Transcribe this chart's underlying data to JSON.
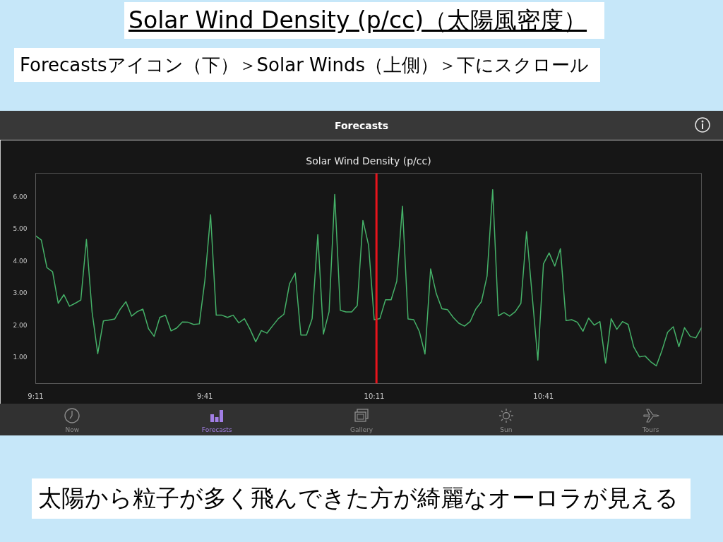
{
  "chart_data": {
    "type": "line",
    "title": "Solar Wind Density (p/cc)（太陽風密度）",
    "subtitle": "Forecastsアイコン（下）＞Solar Winds（上側）＞下にスクロール",
    "annotations": [
      "Forecasts",
      "Solar Wind Density (p/cc)",
      "Now",
      "Forecasts",
      "Gallery",
      "Sun",
      "Tours",
      "太陽から粒子が多く飛んできた方が綺麗なオーロラが見える"
    ],
    "x": [
      9.1833,
      9.2,
      9.2167,
      9.2333,
      9.25,
      9.2667,
      9.2833,
      9.3,
      9.3167,
      9.3333,
      9.35,
      9.3667,
      9.3833,
      9.4,
      9.4167,
      9.4333,
      9.45,
      9.4667,
      9.4833,
      9.5,
      9.5167,
      9.5333,
      9.55,
      9.5667,
      9.5833,
      9.6,
      9.6167,
      9.6333,
      9.65,
      9.6667,
      9.6833,
      9.7,
      9.7167,
      9.7333,
      9.75,
      9.7667,
      9.7833,
      9.8,
      9.8167,
      9.8333,
      9.85,
      9.8667,
      9.8833,
      9.9,
      9.9167,
      9.9333,
      9.95,
      9.9667,
      9.9833,
      10.0,
      10.0167,
      10.0333,
      10.05,
      10.0667,
      10.0833,
      10.1,
      10.1167,
      10.1333,
      10.15,
      10.1667,
      10.1833,
      10.2,
      10.2167,
      10.2333,
      10.25,
      10.2667,
      10.2833,
      10.3,
      10.3167,
      10.3333,
      10.35,
      10.3667,
      10.3833,
      10.4,
      10.4167,
      10.4333,
      10.45,
      10.4667,
      10.4833,
      10.5,
      10.5167,
      10.5333,
      10.55,
      10.5667,
      10.5833,
      10.6,
      10.6167,
      10.6333,
      10.65,
      10.6667,
      10.6833,
      10.7,
      10.7167,
      10.7333,
      10.75,
      10.7667,
      10.7833,
      10.8,
      10.8167,
      10.8333,
      10.85,
      10.8667,
      10.8833,
      10.9,
      10.9167,
      10.9333,
      10.95,
      10.9667,
      10.9833,
      11.0,
      11.0167,
      11.0333,
      11.05,
      11.0667,
      11.0833,
      11.1,
      11.1167,
      11.1333,
      11.15
    ],
    "series": [
      {
        "color": "#45b168",
        "values": [
          4.77,
          4.64,
          3.78,
          3.65,
          2.67,
          2.94,
          2.58,
          2.67,
          2.77,
          4.66,
          2.4,
          1.1,
          2.12,
          2.15,
          2.18,
          2.49,
          2.72,
          2.27,
          2.41,
          2.49,
          1.88,
          1.64,
          2.23,
          2.3,
          1.81,
          1.9,
          2.09,
          2.08,
          2.01,
          2.03,
          3.4,
          5.43,
          2.3,
          2.3,
          2.23,
          2.3,
          2.06,
          2.19,
          1.86,
          1.47,
          1.82,
          1.74,
          1.97,
          2.19,
          2.33,
          3.28,
          3.61,
          1.68,
          1.68,
          2.19,
          4.81,
          1.71,
          2.41,
          6.06,
          2.45,
          2.4,
          2.4,
          2.6,
          5.25,
          4.48,
          2.16,
          2.19,
          2.78,
          2.78,
          3.36,
          5.69,
          2.18,
          2.16,
          1.79,
          1.09,
          3.74,
          2.97,
          2.5,
          2.47,
          2.23,
          2.05,
          1.96,
          2.1,
          2.49,
          2.72,
          3.52,
          6.21,
          2.28,
          2.38,
          2.27,
          2.41,
          2.67,
          4.9,
          2.9,
          0.9,
          3.9,
          4.24,
          3.83,
          4.37,
          2.13,
          2.16,
          2.08,
          1.8,
          2.21,
          1.99,
          2.1,
          0.81,
          2.19,
          1.86,
          2.1,
          2.01,
          1.31,
          1.0,
          1.03,
          0.85,
          0.72,
          1.2,
          1.77,
          1.94,
          1.32,
          1.91,
          1.64,
          1.59,
          1.91
        ]
      }
    ],
    "xlim": [
      9.1833,
      11.15
    ],
    "ylim": [
      0.17,
      6.72
    ],
    "xticks": [
      {
        "value": 9.1833,
        "label": "9:11"
      },
      {
        "value": 9.6833,
        "label": "9:41"
      },
      {
        "value": 10.1833,
        "label": "10:11"
      },
      {
        "value": 10.6833,
        "label": "10:41"
      }
    ],
    "yticks": [
      {
        "value": 1,
        "label": "1.00"
      },
      {
        "value": 2,
        "label": "2.00"
      },
      {
        "value": 3,
        "label": "3.00"
      },
      {
        "value": 4,
        "label": "4.00"
      },
      {
        "value": 5,
        "label": "5.00"
      },
      {
        "value": 6,
        "label": "6.00"
      }
    ],
    "ref_lines": [
      {
        "axis": "x",
        "value": 10.19,
        "color": "#e8141c"
      }
    ],
    "line_style": "solid"
  }
}
